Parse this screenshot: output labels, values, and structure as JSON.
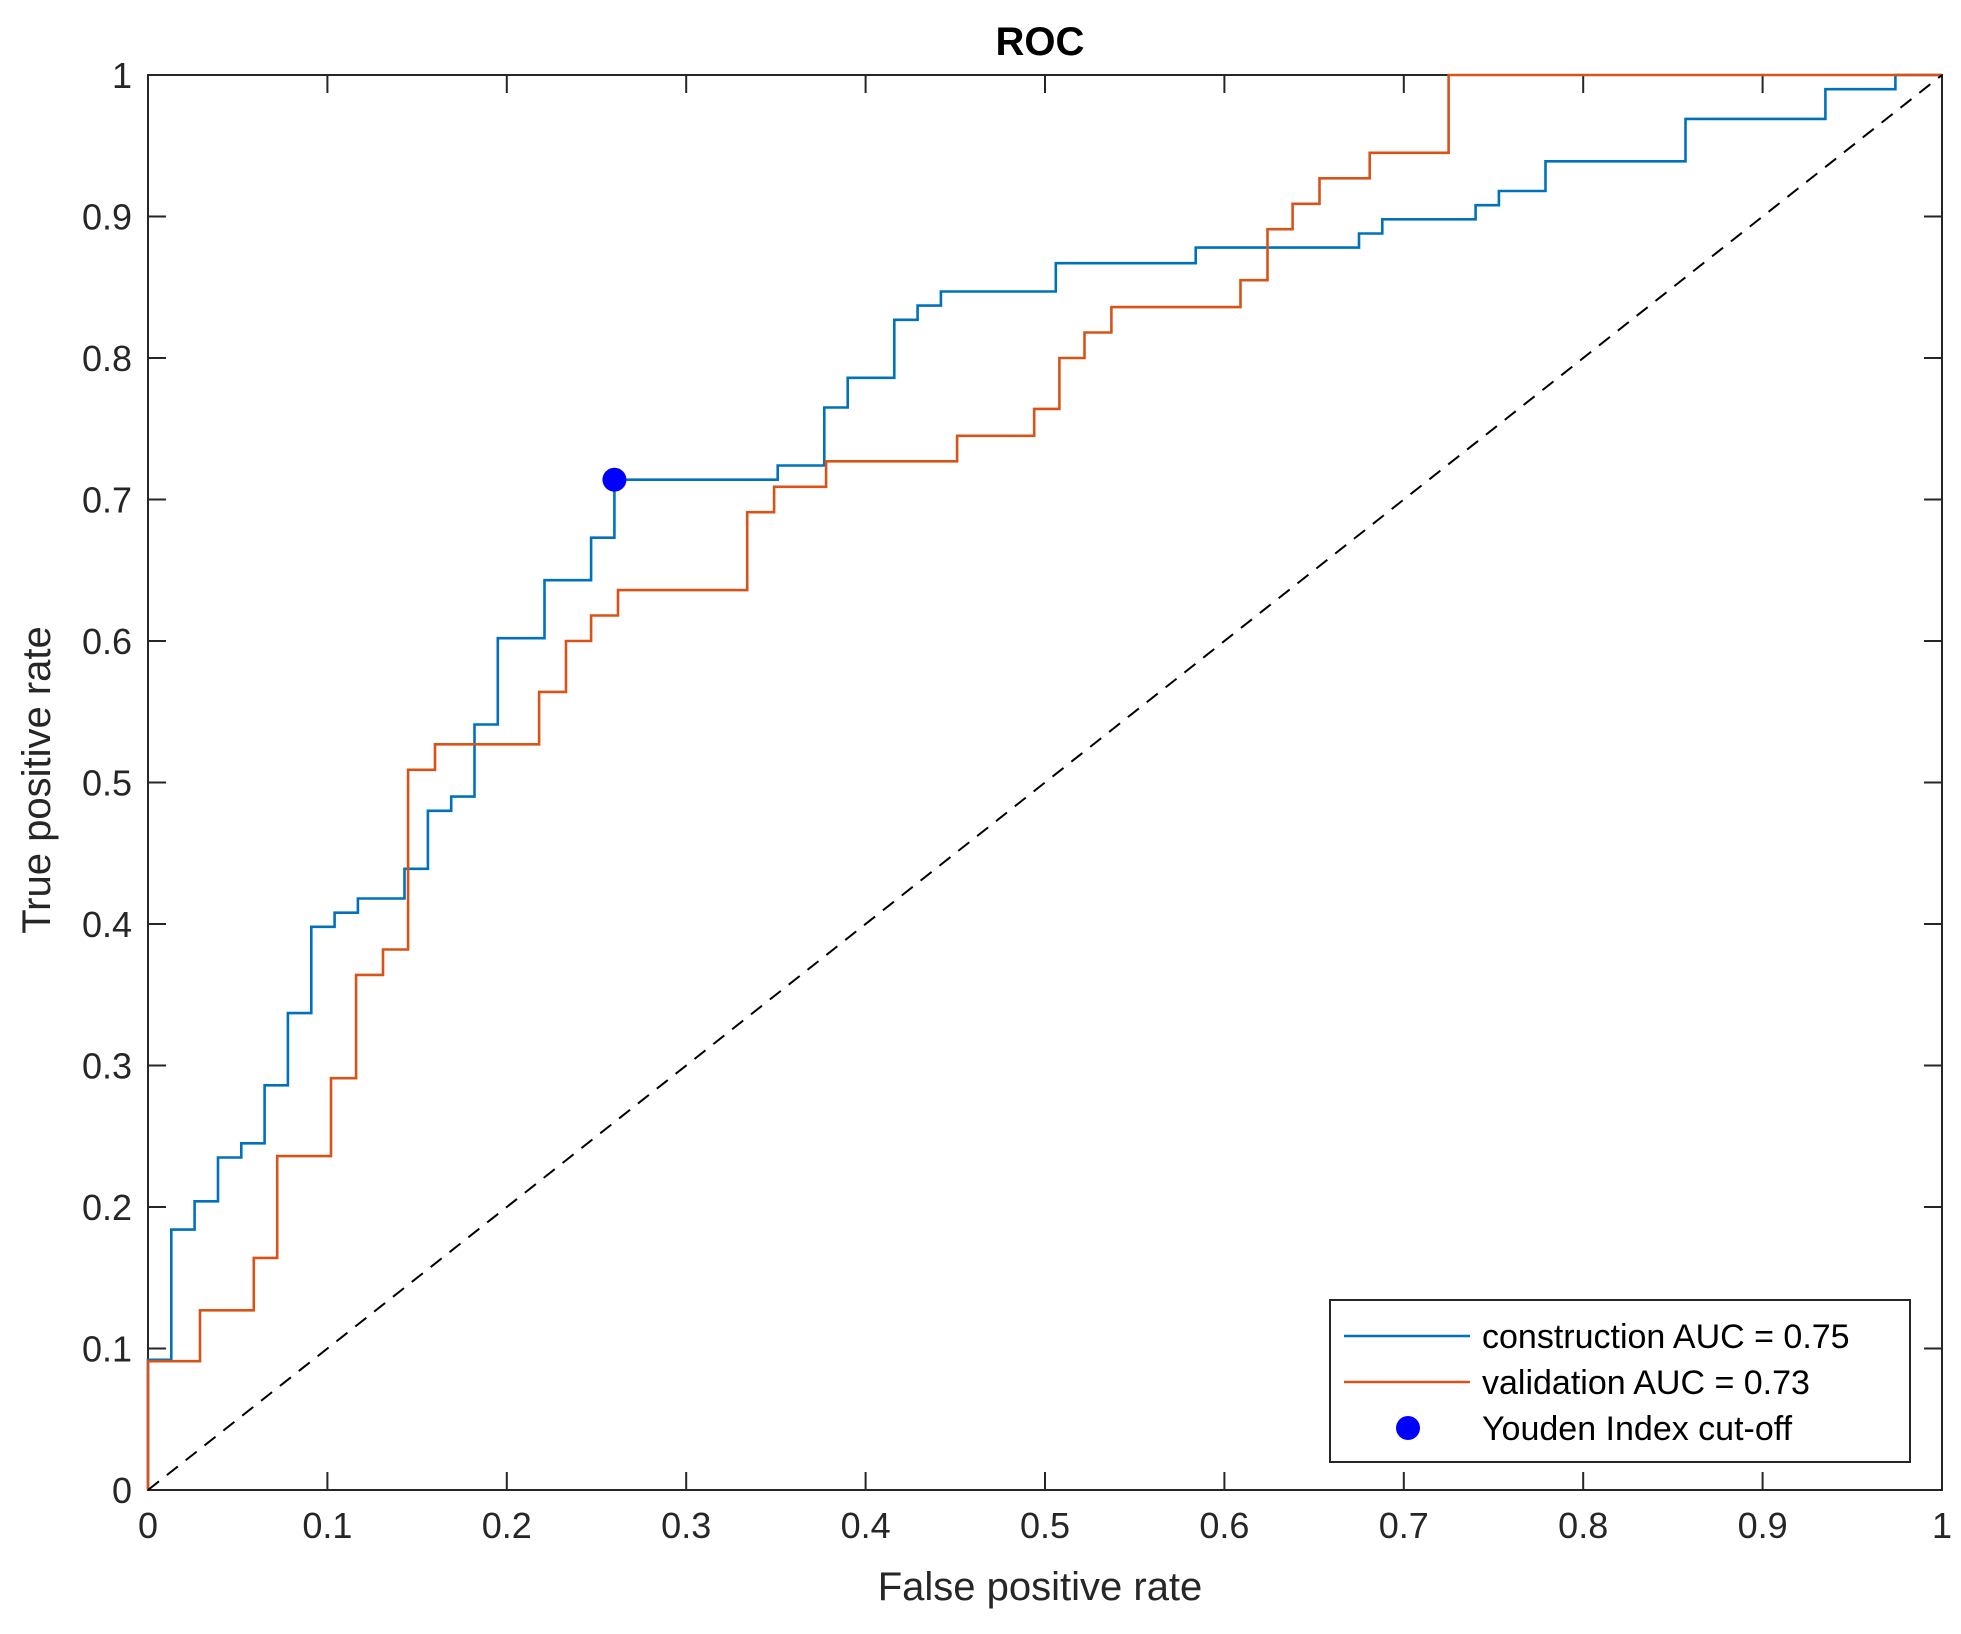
{
  "chart_data": {
    "type": "line",
    "title": "ROC",
    "xlabel": "False positive rate",
    "ylabel": "True positive rate",
    "xlim": [
      0,
      1
    ],
    "ylim": [
      0,
      1
    ],
    "xticks": [
      0,
      0.1,
      0.2,
      0.3,
      0.4,
      0.5,
      0.6,
      0.7,
      0.8,
      0.9,
      1
    ],
    "xtick_labels": [
      "0",
      "0.1",
      "0.2",
      "0.3",
      "0.4",
      "0.5",
      "0.6",
      "0.7",
      "0.8",
      "0.9",
      "1"
    ],
    "yticks": [
      0,
      0.1,
      0.2,
      0.3,
      0.4,
      0.5,
      0.6,
      0.7,
      0.8,
      0.9,
      1
    ],
    "ytick_labels": [
      "0",
      "0.1",
      "0.2",
      "0.3",
      "0.4",
      "0.5",
      "0.6",
      "0.7",
      "0.8",
      "0.9",
      "1"
    ],
    "grid": false,
    "box": true,
    "legend_position": "bottom-right",
    "series": [
      {
        "name": "construction AUC = 0.75",
        "color": "#0072BD",
        "style": "step",
        "x": [
          0,
          0,
          0.013,
          0.013,
          0.026,
          0.026,
          0.039,
          0.039,
          0.052,
          0.052,
          0.065,
          0.065,
          0.078,
          0.078,
          0.091,
          0.091,
          0.104,
          0.104,
          0.117,
          0.117,
          0.143,
          0.143,
          0.156,
          0.156,
          0.169,
          0.169,
          0.182,
          0.182,
          0.195,
          0.195,
          0.221,
          0.221,
          0.247,
          0.247,
          0.26,
          0.26,
          0.351,
          0.351,
          0.377,
          0.377,
          0.39,
          0.39,
          0.416,
          0.416,
          0.429,
          0.429,
          0.442,
          0.442,
          0.506,
          0.506,
          0.584,
          0.584,
          0.675,
          0.675,
          0.688,
          0.688,
          0.74,
          0.74,
          0.753,
          0.753,
          0.779,
          0.779,
          0.857,
          0.857,
          0.935,
          0.935,
          0.974,
          0.974,
          1
        ],
        "y": [
          0,
          0.092,
          0.092,
          0.184,
          0.184,
          0.204,
          0.204,
          0.235,
          0.235,
          0.245,
          0.245,
          0.286,
          0.286,
          0.337,
          0.337,
          0.398,
          0.398,
          0.408,
          0.408,
          0.418,
          0.418,
          0.439,
          0.439,
          0.48,
          0.48,
          0.49,
          0.49,
          0.541,
          0.541,
          0.602,
          0.602,
          0.643,
          0.643,
          0.673,
          0.673,
          0.714,
          0.714,
          0.724,
          0.724,
          0.765,
          0.765,
          0.786,
          0.786,
          0.827,
          0.827,
          0.837,
          0.837,
          0.847,
          0.847,
          0.867,
          0.867,
          0.878,
          0.878,
          0.888,
          0.888,
          0.898,
          0.898,
          0.908,
          0.908,
          0.918,
          0.918,
          0.939,
          0.939,
          0.969,
          0.969,
          0.99,
          0.99,
          1,
          1
        ]
      },
      {
        "name": "validation AUC = 0.73",
        "color": "#D95319",
        "style": "step",
        "x": [
          0,
          0,
          0.029,
          0.029,
          0.059,
          0.059,
          0.072,
          0.072,
          0.102,
          0.102,
          0.116,
          0.116,
          0.131,
          0.131,
          0.145,
          0.145,
          0.16,
          0.16,
          0.218,
          0.218,
          0.233,
          0.233,
          0.247,
          0.247,
          0.262,
          0.262,
          0.334,
          0.334,
          0.349,
          0.349,
          0.378,
          0.378,
          0.451,
          0.451,
          0.494,
          0.494,
          0.508,
          0.508,
          0.522,
          0.522,
          0.537,
          0.537,
          0.609,
          0.609,
          0.624,
          0.624,
          0.638,
          0.638,
          0.653,
          0.653,
          0.681,
          0.681,
          0.725,
          0.725,
          1
        ],
        "y": [
          0,
          0.091,
          0.091,
          0.127,
          0.127,
          0.164,
          0.164,
          0.236,
          0.236,
          0.291,
          0.291,
          0.364,
          0.364,
          0.382,
          0.382,
          0.509,
          0.509,
          0.527,
          0.527,
          0.564,
          0.564,
          0.6,
          0.6,
          0.618,
          0.618,
          0.636,
          0.636,
          0.691,
          0.691,
          0.709,
          0.709,
          0.727,
          0.727,
          0.745,
          0.745,
          0.764,
          0.764,
          0.8,
          0.8,
          0.818,
          0.818,
          0.836,
          0.836,
          0.855,
          0.855,
          0.891,
          0.891,
          0.909,
          0.909,
          0.927,
          0.927,
          0.945,
          0.945,
          1,
          1
        ]
      },
      {
        "name": "Youden Index cut-off",
        "color": "#0000FF",
        "style": "marker",
        "x": [
          0.26
        ],
        "y": [
          0.714
        ]
      },
      {
        "color": "#000000",
        "style": "dashed-diagonal",
        "x": [
          0,
          1
        ],
        "y": [
          0,
          1
        ]
      }
    ]
  }
}
